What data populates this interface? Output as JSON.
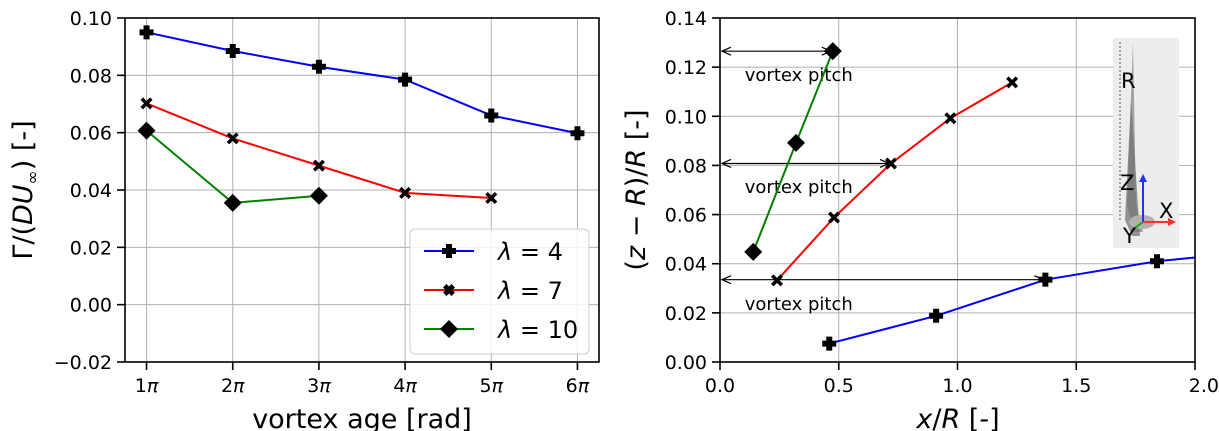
{
  "chart_data": [
    {
      "type": "line",
      "ylabel": "Γ/(DU∞) [-]",
      "ylabel_parts": {
        "prefix": "Γ/(",
        "var": "DU",
        "sub": "∞",
        "suffix": ") [-]"
      },
      "xlabel": "vortex age [rad]",
      "categories": [
        "1π",
        "2π",
        "3π",
        "4π",
        "5π",
        "6π"
      ],
      "x": [
        1,
        2,
        3,
        4,
        5,
        6
      ],
      "ylim": [
        -0.02,
        0.1
      ],
      "yticks": [
        "−0.02",
        "0.00",
        "0.02",
        "0.04",
        "0.06",
        "0.08",
        "0.10"
      ],
      "ytick_values": [
        -0.02,
        0,
        0.02,
        0.04,
        0.06,
        0.08,
        0.1
      ],
      "grid": true,
      "legend_position": "bottom-right",
      "series": [
        {
          "name": "λ = 4",
          "label_var": "λ",
          "label_value": "= 4",
          "color": "#0000ff",
          "marker": "plus",
          "x": [
            1,
            2,
            3,
            4,
            5,
            6
          ],
          "values": [
            0.095,
            0.0885,
            0.083,
            0.0785,
            0.066,
            0.0598
          ]
        },
        {
          "name": "λ = 7",
          "label_var": "λ",
          "label_value": "= 7",
          "color": "#ff0000",
          "marker": "x",
          "x": [
            1,
            2,
            3,
            4,
            5
          ],
          "values": [
            0.0702,
            0.058,
            0.0485,
            0.039,
            0.0372
          ]
        },
        {
          "name": "λ = 10",
          "label_var": "λ",
          "label_value": "= 10",
          "color": "#008000",
          "marker": "diamond",
          "x": [
            1,
            2,
            3
          ],
          "values": [
            0.0607,
            0.0355,
            0.038
          ]
        }
      ]
    },
    {
      "type": "line",
      "ylabel": "(z − R)/R [-]",
      "xlabel": "x/R [-]",
      "xlim": [
        0,
        2
      ],
      "ylim": [
        0,
        0.14
      ],
      "xticks": [
        "0.0",
        "0.5",
        "1.0",
        "1.5",
        "2.0"
      ],
      "xtick_values": [
        0,
        0.5,
        1,
        1.5,
        2
      ],
      "yticks": [
        "0.00",
        "0.02",
        "0.04",
        "0.06",
        "0.08",
        "0.10",
        "0.12",
        "0.14"
      ],
      "ytick_values": [
        0,
        0.02,
        0.04,
        0.06,
        0.08,
        0.1,
        0.12,
        0.14
      ],
      "grid": true,
      "series": [
        {
          "color": "#0000ff",
          "marker": "plus",
          "x": [
            0.46,
            0.91,
            1.37,
            1.84,
            2.05
          ],
          "values": [
            0.0075,
            0.0188,
            0.0335,
            0.041,
            0.043
          ],
          "marker_count": 4
        },
        {
          "color": "#ff0000",
          "marker": "x",
          "x": [
            0.24,
            0.48,
            0.72,
            0.97,
            1.23
          ],
          "values": [
            0.0332,
            0.0588,
            0.0808,
            0.0992,
            0.1138
          ],
          "marker_count": 5
        },
        {
          "color": "#008000",
          "marker": "diamond",
          "x": [
            0.14,
            0.32,
            0.475
          ],
          "values": [
            0.0448,
            0.0892,
            0.1265
          ],
          "marker_count": 3
        }
      ],
      "annotations": [
        {
          "text": "vortex pitch",
          "arrow_from_x": 0.0,
          "arrow_to_x": 0.475,
          "arrow_y": 0.1265,
          "text_x": 0.1,
          "text_y": 0.118
        },
        {
          "text": "vortex pitch",
          "arrow_from_x": 0.0,
          "arrow_to_x": 0.72,
          "arrow_y": 0.0808,
          "text_x": 0.1,
          "text_y": 0.0725
        },
        {
          "text": "vortex pitch",
          "arrow_from_x": 0.0,
          "arrow_to_x": 1.37,
          "arrow_y": 0.0335,
          "text_x": 0.1,
          "text_y": 0.0248
        }
      ],
      "inset": {
        "labels": [
          "R",
          "Z",
          "X",
          "Y"
        ]
      }
    }
  ]
}
